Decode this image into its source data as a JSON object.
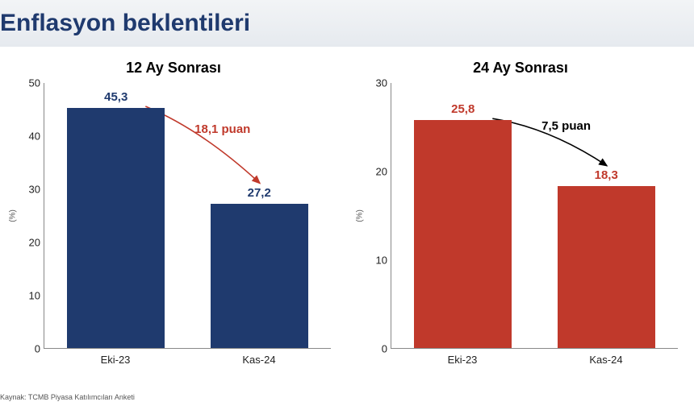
{
  "header": {
    "title": "Enflasyon beklentileri"
  },
  "footer": {
    "source": "Kaynak: TCMB Piyasa Katılımcıları Anketi"
  },
  "y_axis_label": "(%)",
  "charts": [
    {
      "title": "12 Ay Sonrası",
      "categories": [
        "Eki-23",
        "Kas-24"
      ],
      "values": [
        45.3,
        27.2
      ],
      "display_values": [
        "45,3",
        "27,2"
      ],
      "label_colors": [
        "#1f3a6e",
        "#1f3a6e"
      ],
      "bar_colors": [
        "#1f3a6e",
        "#1f3a6e"
      ],
      "ylim": [
        0,
        50
      ],
      "ytick_step": 10,
      "bar_width_pct": 34,
      "delta_label": "18,1 puan",
      "delta_color": "#c0392b",
      "arrow_color": "#c0392b"
    },
    {
      "title": "24 Ay Sonrası",
      "categories": [
        "Eki-23",
        "Kas-24"
      ],
      "values": [
        25.8,
        18.3
      ],
      "display_values": [
        "25,8",
        "18,3"
      ],
      "label_colors": [
        "#c0392b",
        "#c0392b"
      ],
      "bar_colors": [
        "#c0392b",
        "#c0392b"
      ],
      "ylim": [
        0,
        30
      ],
      "ytick_step": 10,
      "bar_width_pct": 34,
      "delta_label": "7,5 puan",
      "delta_color": "#000000",
      "arrow_color": "#000000"
    }
  ],
  "style": {
    "title_fontsize": 30,
    "chart_title_fontsize": 18,
    "tick_fontsize": 13,
    "bar_label_fontsize": 15,
    "delta_fontsize": 15,
    "axis_color": "#888888",
    "header_bg_top": "#f2f4f6",
    "header_bg_bottom": "#e6eaef",
    "header_text_color": "#1f3a6e"
  }
}
